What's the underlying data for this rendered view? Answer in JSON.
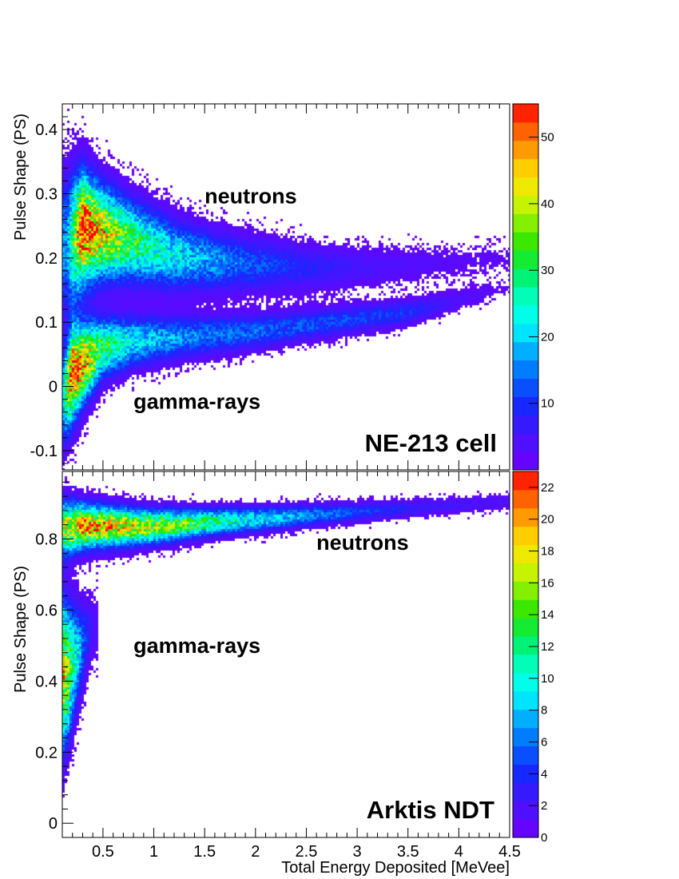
{
  "chart_data": [
    {
      "type": "heatmap",
      "detector_label": "NE-213 cell",
      "ylabel": "Pulse Shape (PS)",
      "xlabel": "",
      "xlim": [
        0.1,
        4.5
      ],
      "ylim": [
        -0.13,
        0.44
      ],
      "x_ticks": [
        0.5,
        1,
        1.5,
        2,
        2.5,
        3,
        3.5,
        4,
        4.5
      ],
      "y_ticks": [
        -0.1,
        0,
        0.1,
        0.2,
        0.3,
        0.4
      ],
      "y_tick_labels": [
        "-0.1",
        "0",
        "0.1",
        "0.2",
        "0.3",
        "0.4"
      ],
      "annotations": [
        {
          "text": "neutrons",
          "x": 1.5,
          "y": 0.285
        },
        {
          "text": "gamma-rays",
          "x": 0.8,
          "y": -0.035
        }
      ],
      "colorbar": {
        "min": 0,
        "max": 55,
        "ticks": [
          10,
          20,
          30,
          40,
          50
        ],
        "tick_labels": [
          "10",
          "20",
          "30",
          "40",
          "50"
        ]
      },
      "bands": [
        {
          "name": "neutrons",
          "points": [
            [
              0.15,
              0.22,
              0.07,
              0.3
            ],
            [
              0.3,
              0.245,
              0.055,
              1.0
            ],
            [
              0.5,
              0.24,
              0.045,
              0.8
            ],
            [
              0.8,
              0.225,
              0.04,
              0.55
            ],
            [
              1.2,
              0.205,
              0.035,
              0.4
            ],
            [
              1.6,
              0.195,
              0.03,
              0.3
            ],
            [
              2.0,
              0.19,
              0.028,
              0.22
            ],
            [
              2.5,
              0.185,
              0.025,
              0.15
            ],
            [
              3.0,
              0.185,
              0.022,
              0.1
            ],
            [
              3.5,
              0.19,
              0.02,
              0.07
            ],
            [
              4.0,
              0.195,
              0.018,
              0.05
            ],
            [
              4.5,
              0.2,
              0.016,
              0.04
            ]
          ]
        },
        {
          "name": "gamma-rays",
          "points": [
            [
              0.1,
              -0.02,
              0.05,
              0.3
            ],
            [
              0.2,
              0.02,
              0.045,
              1.0
            ],
            [
              0.3,
              0.035,
              0.04,
              0.85
            ],
            [
              0.5,
              0.06,
              0.03,
              0.55
            ],
            [
              0.8,
              0.07,
              0.025,
              0.4
            ],
            [
              1.2,
              0.075,
              0.022,
              0.3
            ],
            [
              1.6,
              0.08,
              0.02,
              0.26
            ],
            [
              2.0,
              0.085,
              0.018,
              0.24
            ],
            [
              2.5,
              0.095,
              0.016,
              0.22
            ],
            [
              3.0,
              0.105,
              0.015,
              0.2
            ],
            [
              3.5,
              0.115,
              0.013,
              0.18
            ],
            [
              4.0,
              0.135,
              0.012,
              0.08
            ],
            [
              4.5,
              0.155,
              0.01,
              0.03
            ]
          ]
        }
      ]
    },
    {
      "type": "heatmap",
      "detector_label": "Arktis NDT",
      "ylabel": "Pulse Shape (PS)",
      "xlabel": "Total Energy Deposited [MeVee]",
      "xlim": [
        0.1,
        4.5
      ],
      "ylim": [
        -0.04,
        0.99
      ],
      "x_ticks": [
        0.5,
        1,
        1.5,
        2,
        2.5,
        3,
        3.5,
        4,
        4.5
      ],
      "x_tick_labels": [
        "0.5",
        "1",
        "1.5",
        "2",
        "2.5",
        "3",
        "3.5",
        "4",
        "4.5"
      ],
      "y_ticks": [
        0,
        0.2,
        0.4,
        0.6,
        0.8
      ],
      "y_tick_labels": [
        "0",
        "0.2",
        "0.4",
        "0.6",
        "0.8"
      ],
      "annotations": [
        {
          "text": "neutrons",
          "x": 2.6,
          "y": 0.77
        },
        {
          "text": "gamma-rays",
          "x": 0.8,
          "y": 0.48
        }
      ],
      "colorbar": {
        "min": 0,
        "max": 23,
        "ticks": [
          0,
          2,
          4,
          6,
          8,
          10,
          12,
          14,
          16,
          18,
          20,
          22
        ],
        "tick_labels": [
          "0",
          "2",
          "4",
          "6",
          "8",
          "10",
          "12",
          "14",
          "16",
          "18",
          "20",
          "22"
        ]
      },
      "bands": [
        {
          "name": "neutrons",
          "points": [
            [
              0.1,
              0.83,
              0.05,
              0.7
            ],
            [
              0.3,
              0.835,
              0.04,
              0.85
            ],
            [
              0.6,
              0.835,
              0.035,
              0.8
            ],
            [
              1.0,
              0.835,
              0.03,
              0.7
            ],
            [
              1.5,
              0.845,
              0.025,
              0.55
            ],
            [
              2.0,
              0.855,
              0.022,
              0.4
            ],
            [
              2.5,
              0.865,
              0.02,
              0.3
            ],
            [
              3.0,
              0.875,
              0.018,
              0.2
            ],
            [
              3.5,
              0.885,
              0.016,
              0.14
            ],
            [
              4.0,
              0.895,
              0.015,
              0.1
            ],
            [
              4.5,
              0.905,
              0.014,
              0.08
            ]
          ]
        },
        {
          "name": "gamma-rays",
          "points": [
            [
              0.1,
              0.42,
              0.13,
              0.85
            ],
            [
              0.15,
              0.42,
              0.12,
              0.7
            ],
            [
              0.22,
              0.46,
              0.1,
              0.45
            ],
            [
              0.3,
              0.5,
              0.08,
              0.25
            ],
            [
              0.4,
              0.55,
              0.06,
              0.08
            ]
          ]
        }
      ]
    }
  ]
}
